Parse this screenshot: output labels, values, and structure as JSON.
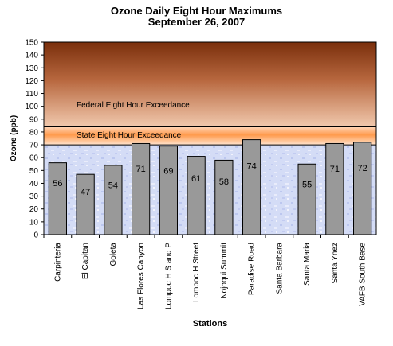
{
  "chart_data": {
    "type": "bar",
    "title": "Ozone Daily  Eight Hour Maximums",
    "subtitle": "September 26, 2007",
    "xlabel": "Stations",
    "ylabel": "Ozone (ppb)",
    "ylim": [
      0,
      150
    ],
    "ytick_step": 10,
    "grid": false,
    "categories": [
      "Carpinteria",
      "El Capitan",
      "Goleta",
      "Las Flores Canyon",
      "Lompoc H S and P",
      "Lompoc H Street",
      "Nojoqui Summit",
      "Paradise Road",
      "Santa Barbara",
      "Santa Maria",
      "Santa Ynez",
      "VAFB South Base"
    ],
    "values": [
      56,
      47,
      54,
      71,
      69,
      61,
      58,
      74,
      null,
      55,
      71,
      72
    ],
    "value_labels": [
      "56",
      "47",
      "54",
      "71",
      "69",
      "61",
      "58",
      "74",
      "",
      "55",
      "71",
      "72"
    ],
    "thresholds": [
      {
        "label": "Federal Eight Hour Exceedance",
        "value": 84
      },
      {
        "label": "State Eight Hour Exceedance",
        "value": 70
      }
    ],
    "bar_color": "#999999"
  }
}
